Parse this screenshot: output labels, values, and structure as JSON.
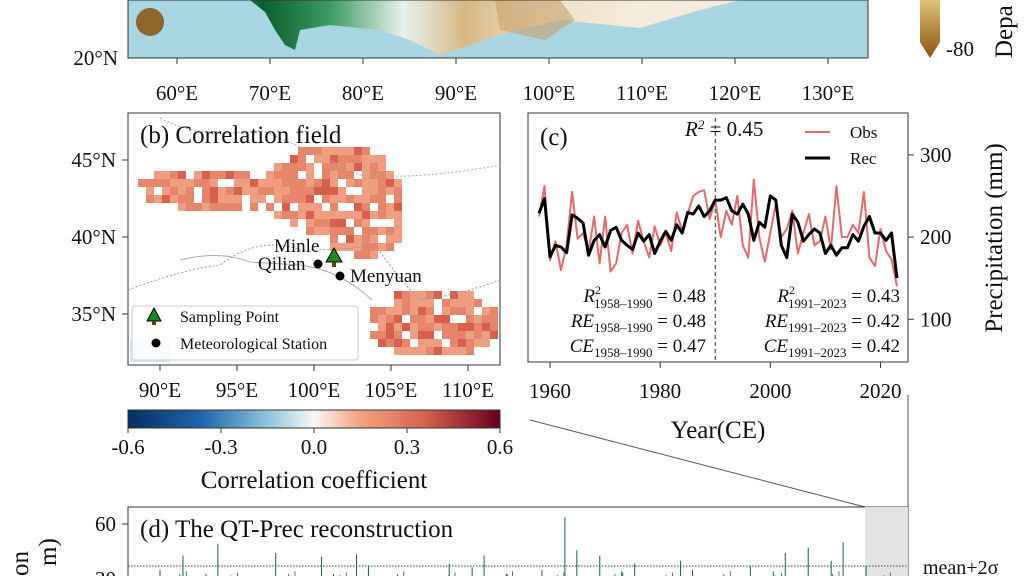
{
  "panel_a": {
    "lat_ticks": [
      "20°N"
    ],
    "lon_ticks": [
      "60°E",
      "70°E",
      "80°E",
      "90°E",
      "100°E",
      "110°E",
      "120°E",
      "130°E"
    ],
    "colorbar": {
      "tick": "-80",
      "label_partial": "Depa"
    },
    "colors": {
      "ocean": "#a8d5e2",
      "wet": "#0b5e2e",
      "dry": "#8c510a"
    }
  },
  "panel_b": {
    "title": "(b) Correlation field",
    "lat_ticks": [
      "45°N",
      "40°N",
      "35°N"
    ],
    "lon_ticks": [
      "90°E",
      "95°E",
      "100°E",
      "105°E",
      "110°E"
    ],
    "sites": {
      "minle": "Minle",
      "qilian": "Qilian",
      "menyuan": "Menyuan"
    },
    "legend": {
      "sampling": "Sampling Point",
      "station": "Meteorological Station"
    },
    "colorbar": {
      "ticks": [
        "-0.6",
        "-0.3",
        "0.0",
        "0.3",
        "0.6"
      ],
      "label": "Correlation coefficient",
      "colors": [
        "#053061",
        "#2166ac",
        "#92c5de",
        "#f7f7f7",
        "#f4a582",
        "#d6604d",
        "#67001f"
      ]
    }
  },
  "chart_data": [
    {
      "type": "line",
      "panel": "(c)",
      "annotation": "R² = 0.45",
      "split_year": 1990,
      "xlabel": "Year(CE)",
      "ylabel": "Precipitation (mm)",
      "x_ticks": [
        "1960",
        "1980",
        "2000",
        "2020"
      ],
      "y_ticks": [
        "100",
        "200",
        "300"
      ],
      "xlim": [
        1956,
        2025
      ],
      "ylim": [
        48,
        351
      ],
      "x_start": 1958,
      "series": [
        {
          "name": "Obs",
          "color": "#e8696b",
          "values": [
            225,
            262,
            172,
            195,
            160,
            190,
            255,
            198,
            205,
            182,
            225,
            168,
            225,
            158,
            168,
            205,
            215,
            180,
            220,
            195,
            175,
            213,
            190,
            205,
            183,
            230,
            207,
            228,
            250,
            255,
            257,
            222,
            245,
            200,
            232,
            215,
            250,
            190,
            175,
            270,
            200,
            170,
            205,
            240,
            200,
            210,
            232,
            180,
            205,
            228,
            190,
            195,
            225,
            185,
            262,
            200,
            200,
            215,
            205,
            255,
            175,
            165,
            210,
            183,
            173,
            140
          ]
        },
        {
          "name": "Rec",
          "color": "#000000",
          "values": [
            229,
            247,
            176,
            190,
            188,
            181,
            227,
            223,
            217,
            178,
            196,
            203,
            188,
            208,
            212,
            196,
            190,
            185,
            205,
            195,
            203,
            180,
            195,
            207,
            196,
            215,
            205,
            230,
            228,
            238,
            225,
            232,
            245,
            245,
            248,
            232,
            228,
            240,
            228,
            196,
            218,
            212,
            250,
            245,
            190,
            175,
            228,
            218,
            195,
            203,
            210,
            205,
            180,
            190,
            178,
            187,
            187,
            203,
            195,
            213,
            225,
            205,
            205,
            196,
            205,
            150
          ]
        }
      ],
      "stats_left": [
        {
          "name": "R",
          "sup": "2",
          "sub": "1958–1990",
          "value": "= 0.48"
        },
        {
          "name": "RE",
          "sup": "",
          "sub": "1958–1990",
          "value": "= 0.48"
        },
        {
          "name": "CE",
          "sup": "",
          "sub": "1958–1990",
          "value": "= 0.47"
        }
      ],
      "stats_right": [
        {
          "name": "R",
          "sup": "2",
          "sub": "1991–2023",
          "value": "= 0.43"
        },
        {
          "name": "RE",
          "sup": "",
          "sub": "1991–2023",
          "value": "= 0.42"
        },
        {
          "name": "CE",
          "sup": "",
          "sub": "1991–2023",
          "value": "= 0.42"
        }
      ]
    },
    {
      "type": "bar",
      "panel": "(d)",
      "title": "(d) The QT-Prec reconstruction",
      "ylabel_partial": [
        "on",
        "m)"
      ],
      "y_ticks": [
        "60",
        "30"
      ],
      "threshold_label": "mean+2σ",
      "threshold_value": 28,
      "color": "#0b6b2a",
      "spikes": [
        25,
        36,
        22,
        45,
        20,
        17,
        38,
        16,
        35,
        22,
        37,
        28,
        15,
        14,
        18,
        30,
        27,
        36,
        22,
        15,
        25,
        65,
        40,
        36,
        23,
        30,
        18,
        32,
        25,
        20,
        15,
        28,
        24,
        38,
        42,
        32,
        46,
        28
      ]
    }
  ]
}
